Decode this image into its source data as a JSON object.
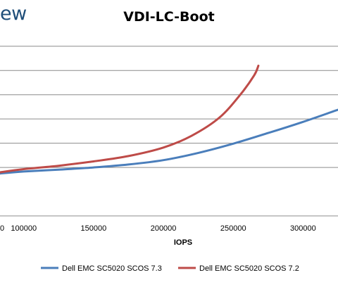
{
  "brand": {
    "text": "ew"
  },
  "chart_data": {
    "type": "line",
    "title": "VDI-LC-Boot",
    "xlabel": "IOPS",
    "ylabel": "",
    "xlim": [
      83000,
      325000
    ],
    "ylim": [
      -1.0,
      6.4
    ],
    "x_ticks": [
      100000,
      150000,
      200000,
      250000,
      300000
    ],
    "x_tick_labels": [
      "100000",
      "150000",
      "200000",
      "250000",
      "300000"
    ],
    "x_edge_label": "0",
    "grid_lines_y": [
      1,
      2,
      3,
      4,
      5,
      6
    ],
    "legend_position": "bottom",
    "series": [
      {
        "name": "Dell EMC SC5020 SCOS 7.3",
        "color": "#4a7ebb",
        "points": [
          [
            83000,
            0.75
          ],
          [
            100000,
            0.83
          ],
          [
            125000,
            0.91
          ],
          [
            150000,
            1.0
          ],
          [
            175000,
            1.12
          ],
          [
            200000,
            1.3
          ],
          [
            225000,
            1.6
          ],
          [
            250000,
            1.98
          ],
          [
            275000,
            2.42
          ],
          [
            300000,
            2.88
          ],
          [
            325000,
            3.38
          ]
        ]
      },
      {
        "name": "Dell EMC SC5020 SCOS 7.2",
        "color": "#be4b48",
        "points": [
          [
            83000,
            0.8
          ],
          [
            100000,
            0.93
          ],
          [
            125000,
            1.07
          ],
          [
            150000,
            1.25
          ],
          [
            175000,
            1.47
          ],
          [
            200000,
            1.82
          ],
          [
            220000,
            2.3
          ],
          [
            240000,
            3.05
          ],
          [
            255000,
            4.0
          ],
          [
            265000,
            4.8
          ],
          [
            268000,
            5.2
          ]
        ]
      }
    ]
  }
}
